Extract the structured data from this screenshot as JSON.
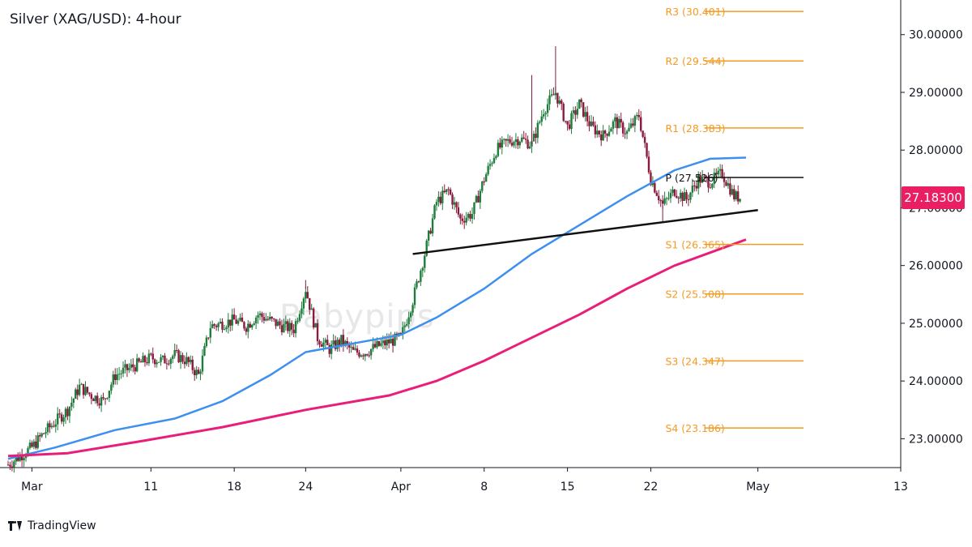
{
  "chart_data": {
    "type": "candlestick",
    "title": "Silver (XAG/USD): 4-hour",
    "watermark": "Babypips",
    "last_price": "27.18300",
    "y_axis": {
      "min": 22.5,
      "max": 30.6,
      "ticks": [
        "23.00000",
        "24.00000",
        "25.00000",
        "26.00000",
        "27.00000",
        "28.00000",
        "29.00000",
        "30.00000"
      ],
      "tick_values": [
        23,
        24,
        25,
        26,
        27,
        28,
        29,
        30
      ]
    },
    "x_axis": {
      "start_date": "2024-02-28",
      "end_date": "2024-05-13",
      "tick_labels": [
        "Mar",
        "11",
        "18",
        "24",
        "Apr",
        "8",
        "15",
        "22",
        "May",
        "13"
      ],
      "tick_dates": [
        "2024-03-01",
        "2024-03-11",
        "2024-03-18",
        "2024-03-24",
        "2024-04-01",
        "2024-04-08",
        "2024-04-15",
        "2024-04-22",
        "2024-05-01",
        "2024-05-13"
      ]
    },
    "price_path": [
      [
        "2024-02-28",
        22.55
      ],
      [
        "2024-02-29",
        22.7
      ],
      [
        "2024-03-01",
        22.85
      ],
      [
        "2024-03-02",
        23.1
      ],
      [
        "2024-03-04",
        23.5
      ],
      [
        "2024-03-05",
        23.9
      ],
      [
        "2024-03-06",
        23.75
      ],
      [
        "2024-03-07",
        23.65
      ],
      [
        "2024-03-08",
        24.1
      ],
      [
        "2024-03-09",
        24.2
      ],
      [
        "2024-03-11",
        24.4
      ],
      [
        "2024-03-12",
        24.35
      ],
      [
        "2024-03-13",
        24.45
      ],
      [
        "2024-03-14",
        24.35
      ],
      [
        "2024-03-15",
        24.1
      ],
      [
        "2024-03-16",
        24.95
      ],
      [
        "2024-03-18",
        25.05
      ],
      [
        "2024-03-19",
        24.95
      ],
      [
        "2024-03-20",
        25.15
      ],
      [
        "2024-03-21",
        25.05
      ],
      [
        "2024-03-22",
        24.95
      ],
      [
        "2024-03-23",
        24.9
      ],
      [
        "2024-03-24",
        25.6
      ],
      [
        "2024-03-25",
        24.75
      ],
      [
        "2024-03-26",
        24.55
      ],
      [
        "2024-03-27",
        24.7
      ],
      [
        "2024-03-28",
        24.5
      ],
      [
        "2024-03-29",
        24.5
      ],
      [
        "2024-03-30",
        24.6
      ],
      [
        "2024-04-01",
        24.75
      ],
      [
        "2024-04-02",
        25.4
      ],
      [
        "2024-04-03",
        26.2
      ],
      [
        "2024-04-04",
        27.1
      ],
      [
        "2024-04-05",
        27.3
      ],
      [
        "2024-04-06",
        26.8
      ],
      [
        "2024-04-07",
        26.9
      ],
      [
        "2024-04-08",
        27.5
      ],
      [
        "2024-04-09",
        28.0
      ],
      [
        "2024-04-10",
        28.15
      ],
      [
        "2024-04-11",
        28.2
      ],
      [
        "2024-04-12",
        28.1
      ],
      [
        "2024-04-13",
        28.7
      ],
      [
        "2024-04-14",
        29.0
      ],
      [
        "2024-04-15",
        28.4
      ],
      [
        "2024-04-16",
        28.8
      ],
      [
        "2024-04-17",
        28.4
      ],
      [
        "2024-04-18",
        28.25
      ],
      [
        "2024-04-19",
        28.5
      ],
      [
        "2024-04-20",
        28.3
      ],
      [
        "2024-04-21",
        28.6
      ],
      [
        "2024-04-22",
        27.5
      ],
      [
        "2024-04-23",
        27.05
      ],
      [
        "2024-04-24",
        27.3
      ],
      [
        "2024-04-25",
        27.15
      ],
      [
        "2024-04-26",
        27.5
      ],
      [
        "2024-04-27",
        27.45
      ],
      [
        "2024-04-28",
        27.6
      ],
      [
        "2024-04-29",
        27.2
      ],
      [
        "2024-04-29T12:00",
        27.18
      ]
    ],
    "spikes": [
      [
        "2024-04-14",
        29.8
      ],
      [
        "2024-04-12",
        29.3
      ],
      [
        "2024-03-24",
        25.75
      ],
      [
        "2024-04-23",
        26.75
      ]
    ],
    "series": [
      {
        "name": "",
        "color": "#3d8ff0",
        "values": [
          [
            "2024-02-28",
            22.65
          ],
          [
            "2024-03-03",
            22.85
          ],
          [
            "2024-03-08",
            23.15
          ],
          [
            "2024-03-13",
            23.35
          ],
          [
            "2024-03-17",
            23.65
          ],
          [
            "2024-03-21",
            24.1
          ],
          [
            "2024-03-24",
            24.5
          ],
          [
            "2024-03-28",
            24.65
          ],
          [
            "2024-04-01",
            24.8
          ],
          [
            "2024-04-04",
            25.1
          ],
          [
            "2024-04-08",
            25.6
          ],
          [
            "2024-04-12",
            26.2
          ],
          [
            "2024-04-16",
            26.7
          ],
          [
            "2024-04-20",
            27.2
          ],
          [
            "2024-04-24",
            27.65
          ],
          [
            "2024-04-27",
            27.85
          ],
          [
            "2024-04-30",
            27.87
          ]
        ]
      },
      {
        "name": "",
        "color": "#e91e7a",
        "values": [
          [
            "2024-02-28",
            22.7
          ],
          [
            "2024-03-04",
            22.75
          ],
          [
            "2024-03-10",
            22.95
          ],
          [
            "2024-03-17",
            23.2
          ],
          [
            "2024-03-24",
            23.5
          ],
          [
            "2024-03-31",
            23.75
          ],
          [
            "2024-04-04",
            24.0
          ],
          [
            "2024-04-08",
            24.35
          ],
          [
            "2024-04-12",
            24.75
          ],
          [
            "2024-04-16",
            25.15
          ],
          [
            "2024-04-20",
            25.6
          ],
          [
            "2024-04-24",
            26.0
          ],
          [
            "2024-04-30",
            26.45
          ]
        ]
      }
    ],
    "trendline": {
      "color": "#111111",
      "points": [
        [
          "2024-04-02",
          26.2
        ],
        [
          "2024-05-01",
          26.96
        ]
      ]
    },
    "pivot_levels": [
      {
        "label": "R3",
        "value": "30.401",
        "color": "#f59a23"
      },
      {
        "label": "R2",
        "value": "29.544",
        "color": "#f59a23"
      },
      {
        "label": "R1",
        "value": "28.383",
        "color": "#f59a23"
      },
      {
        "label": "P",
        "value": "27.526",
        "color": "#111111"
      },
      {
        "label": "S1",
        "value": "26.365",
        "color": "#f59a23"
      },
      {
        "label": "S2",
        "value": "25.508",
        "color": "#f59a23"
      },
      {
        "label": "S3",
        "value": "24.347",
        "color": "#f59a23"
      },
      {
        "label": "S4",
        "value": "23.186",
        "color": "#f59a23"
      }
    ],
    "pivot_range": [
      "2024-04-22",
      "2024-05-05"
    ],
    "grid": false,
    "up_color": "#1e7d3a",
    "down_color": "#8b1a3f"
  },
  "footer": {
    "brand": "TradingView"
  }
}
